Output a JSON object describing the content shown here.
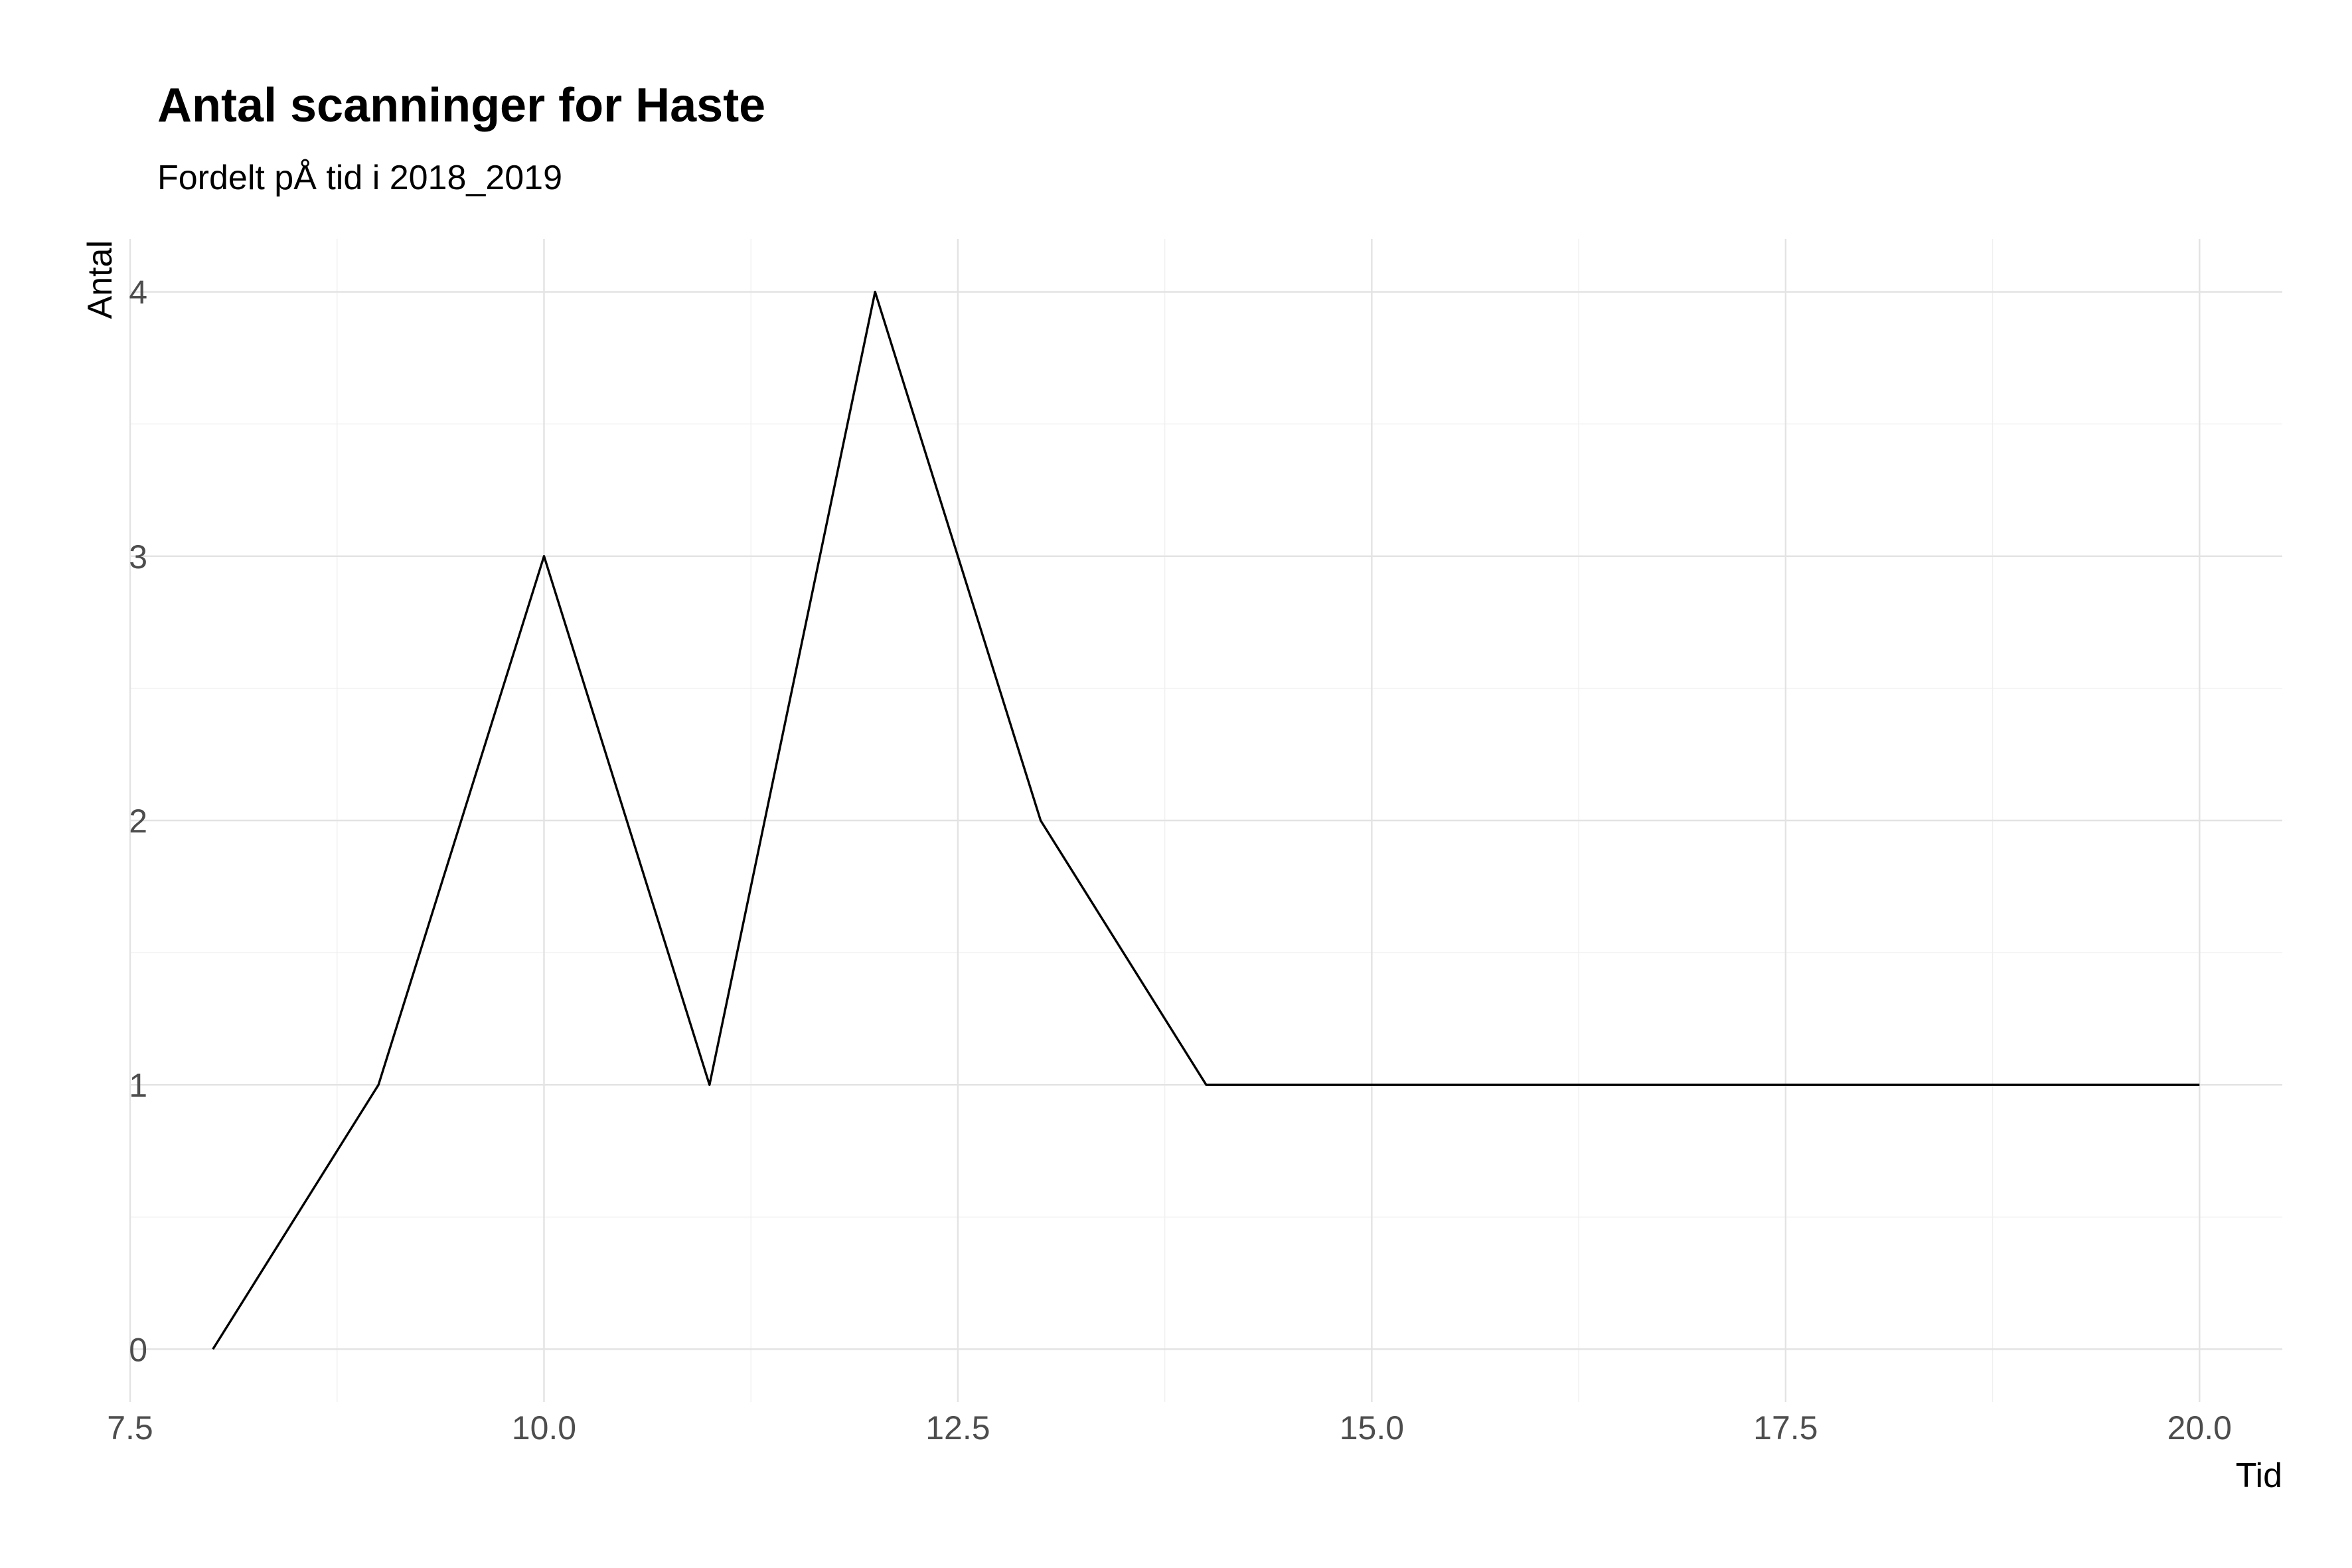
{
  "chart_data": {
    "type": "line",
    "title": "Antal scanninger for Haste",
    "subtitle": "Fordelt pÅ tid i 2018_2019",
    "xlabel": "Tid",
    "ylabel": "Antal",
    "xlim": [
      7.5,
      20.5
    ],
    "ylim": [
      -0.2,
      4.2
    ],
    "xticks": [
      7.5,
      10.0,
      12.5,
      15.0,
      17.5,
      20.0
    ],
    "xtick_labels": [
      "7.5",
      "10.0",
      "12.5",
      "15.0",
      "17.5",
      "20.0"
    ],
    "yticks": [
      0,
      1,
      2,
      3,
      4
    ],
    "ytick_labels": [
      "0",
      "1",
      "2",
      "3",
      "4"
    ],
    "grid": true,
    "legend": "none",
    "line_color": "#000000",
    "series": [
      {
        "x": [
          8,
          9,
          10,
          11,
          12,
          13,
          14,
          15,
          16,
          17,
          18,
          19,
          20
        ],
        "y": [
          0,
          1,
          3,
          1,
          4,
          2,
          1,
          1,
          1,
          1,
          1,
          1,
          1
        ]
      }
    ]
  }
}
